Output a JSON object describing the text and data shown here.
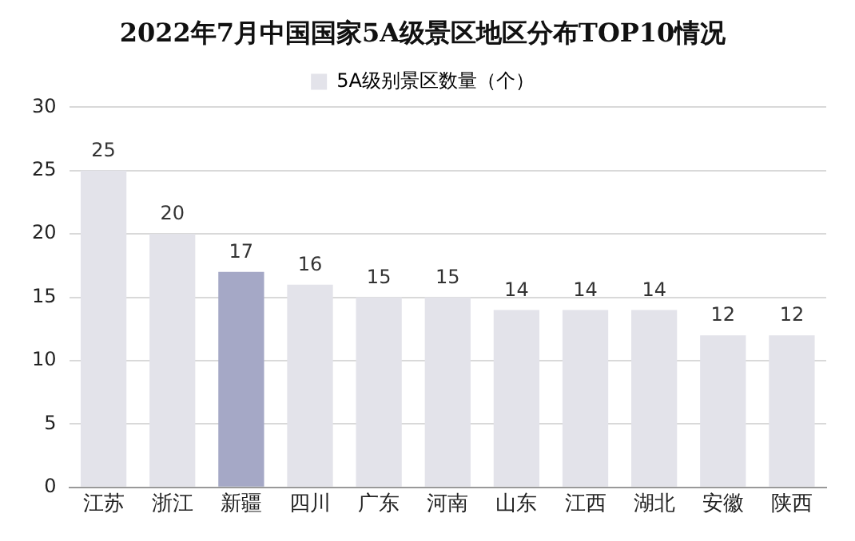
{
  "chart_data": {
    "type": "bar",
    "title": "2022年7月中国国家5A级景区地区分布TOP10情况",
    "categories": [
      "江苏",
      "浙江",
      "新疆",
      "四川",
      "广东",
      "河南",
      "山东",
      "江西",
      "湖北",
      "安徽",
      "陕西"
    ],
    "series": [
      {
        "name": "5A级别景区数量（个）",
        "color": "#e3e3ea",
        "colors": [
          "#e3e3ea",
          "#e3e3ea",
          "#a5a8c6",
          "#e3e3ea",
          "#e3e3ea",
          "#e3e3ea",
          "#e3e3ea",
          "#e3e3ea",
          "#e3e3ea",
          "#e3e3ea",
          "#e3e3ea"
        ],
        "values": [
          25,
          20,
          17,
          16,
          15,
          15,
          14,
          14,
          14,
          12,
          12
        ]
      }
    ],
    "ylim": [
      0,
      30
    ],
    "yticks": [
      0,
      5,
      10,
      15,
      20,
      25,
      30
    ],
    "grid": "y",
    "legend": "top",
    "data_labels": true
  }
}
